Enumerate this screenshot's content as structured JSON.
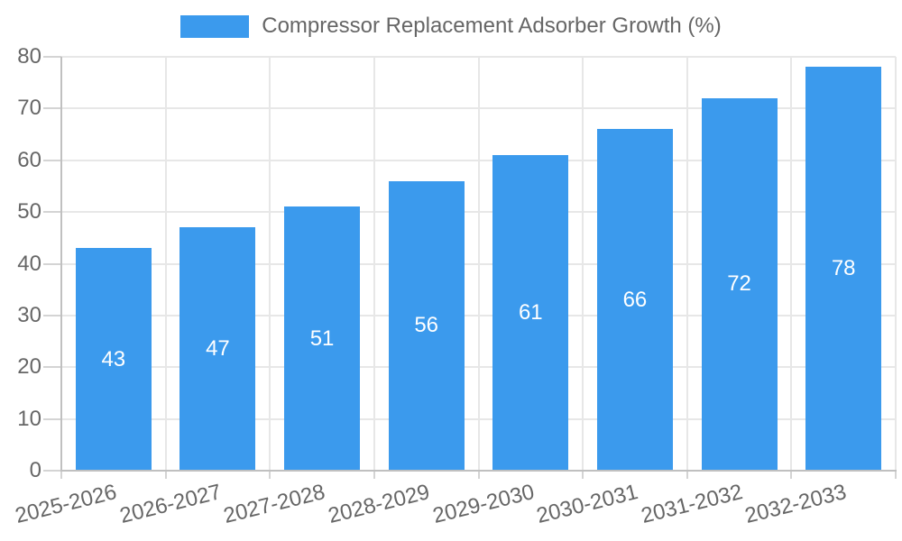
{
  "chart_data": {
    "type": "bar",
    "title": "Compressor Replacement Adsorber Growth (%)",
    "categories": [
      "2025-2026",
      "2026-2027",
      "2027-2028",
      "2028-2029",
      "2029-2030",
      "2030-2031",
      "2031-2032",
      "2032-2033"
    ],
    "values": [
      43,
      47,
      51,
      56,
      61,
      66,
      72,
      78
    ],
    "xlabel": "",
    "ylabel": "",
    "ylim": [
      0,
      80
    ],
    "ytick_step": 10,
    "yticks": [
      0,
      10,
      20,
      30,
      40,
      50,
      60,
      70,
      80
    ],
    "grid": true,
    "legend_position": "top",
    "bar_value_labels_shown": true,
    "colors": {
      "bar": "#3b9aed",
      "bar_label": "#ffffff",
      "axis_text": "#666666",
      "grid_line": "#e7e7e7",
      "tick_line": "#d4d4d4",
      "axis_line": "#c0c0c0",
      "background": "#ffffff"
    }
  }
}
